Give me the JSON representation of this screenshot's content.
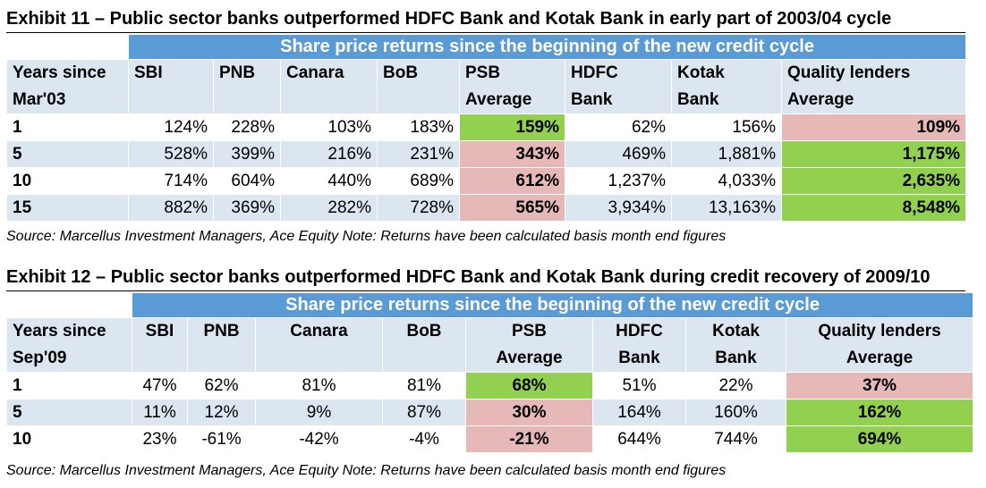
{
  "exhibit11": {
    "title": "Exhibit 11 – Public sector banks outperformed HDFC Bank and Kotak Bank in early part of 2003/04 cycle",
    "banner": "Share price returns since the beginning of the new credit cycle",
    "headers": [
      [
        "Years since",
        "Mar'03"
      ],
      [
        "SBI",
        ""
      ],
      [
        "PNB",
        ""
      ],
      [
        "Canara",
        ""
      ],
      [
        "BoB",
        ""
      ],
      [
        "PSB",
        "Average"
      ],
      [
        "HDFC",
        "Bank"
      ],
      [
        "Kotak",
        "Bank"
      ],
      [
        "Quality lenders",
        "Average"
      ]
    ],
    "rows": [
      [
        "1",
        "124%",
        "228%",
        "103%",
        "183%",
        "159%",
        "62%",
        "156%",
        "109%"
      ],
      [
        "5",
        "528%",
        "399%",
        "216%",
        "231%",
        "343%",
        "469%",
        "1,881%",
        "1,175%"
      ],
      [
        "10",
        "714%",
        "604%",
        "440%",
        "689%",
        "612%",
        "1,237%",
        "4,033%",
        "2,635%"
      ],
      [
        "15",
        "882%",
        "369%",
        "282%",
        "728%",
        "565%",
        "3,934%",
        "13,163%",
        "8,548%"
      ]
    ],
    "highlights": {
      "psb": [
        "green",
        "pink",
        "pink",
        "pink"
      ],
      "quality": [
        "pink",
        "green",
        "green",
        "green"
      ]
    },
    "source": "Source: Marcellus Investment Managers, Ace Equity Note: Returns have been calculated basis month end figures"
  },
  "exhibit12": {
    "title": "Exhibit 12 – Public sector banks outperformed HDFC Bank and Kotak Bank during credit recovery of 2009/10",
    "banner": "Share price returns since the beginning of the new credit cycle",
    "headers": [
      [
        "Years since",
        "Sep'09"
      ],
      [
        "SBI",
        ""
      ],
      [
        "PNB",
        ""
      ],
      [
        "Canara",
        ""
      ],
      [
        "BoB",
        ""
      ],
      [
        "PSB",
        "Average"
      ],
      [
        "HDFC",
        "Bank"
      ],
      [
        "Kotak",
        "Bank"
      ],
      [
        "Quality lenders",
        "Average"
      ]
    ],
    "rows": [
      [
        "1",
        "47%",
        "62%",
        "81%",
        "81%",
        "68%",
        "51%",
        "22%",
        "37%"
      ],
      [
        "5",
        "11%",
        "12%",
        "9%",
        "87%",
        "30%",
        "164%",
        "160%",
        "162%"
      ],
      [
        "10",
        "23%",
        "-61%",
        "-42%",
        "-4%",
        "-21%",
        "644%",
        "744%",
        "694%"
      ]
    ],
    "highlights": {
      "psb": [
        "green",
        "pink",
        "pink"
      ],
      "quality": [
        "pink",
        "green",
        "green"
      ]
    },
    "source": "Source: Marcellus Investment Managers, Ace Equity Note: Returns have been calculated basis month end figures"
  },
  "colors": {
    "banner": "#5b9bd5",
    "header_bg": "#dce6f1",
    "band_bg": "#dce6f1",
    "green": "#92d050",
    "pink": "#e6b8b7"
  }
}
